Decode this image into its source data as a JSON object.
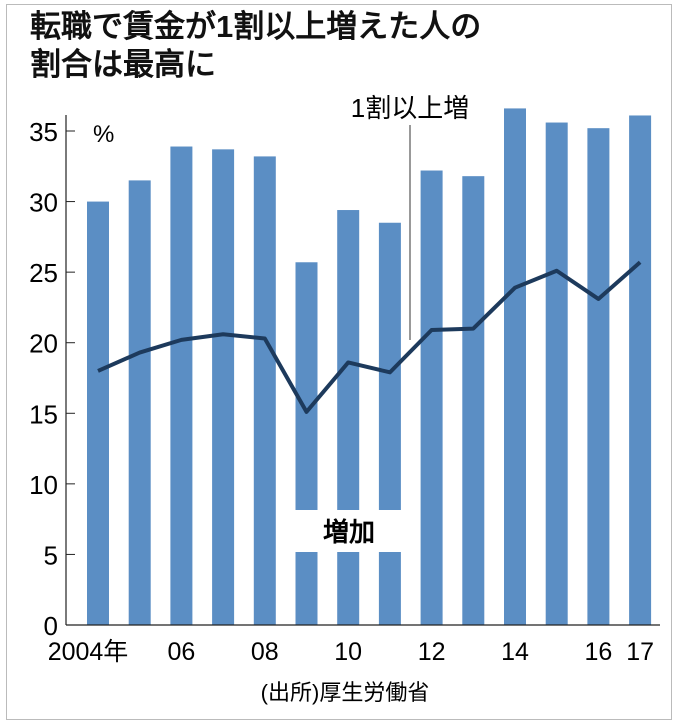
{
  "title_line1": "転職で賃金が1割以上増えた人の",
  "title_line2": "割合は最高に",
  "source": "(出所)厚生労働省",
  "colors": {
    "bar": "#5b8ec4",
    "line": "#1d3a5c"
  },
  "chart_data": {
    "type": "bar+line",
    "title": "転職で賃金が1割以上増えた人の割合は最高に",
    "ylabel": "%",
    "ylim": [
      0,
      35
    ],
    "yticks": [
      "0",
      "5",
      "10",
      "15",
      "20",
      "25",
      "30",
      "35"
    ],
    "x": [
      2004,
      2005,
      2006,
      2007,
      2008,
      2009,
      2010,
      2011,
      2012,
      2013,
      2014,
      2015,
      2016,
      2017
    ],
    "xtick_labels": {
      "0": "2004年",
      "2": "06",
      "4": "08",
      "6": "10",
      "8": "12",
      "10": "14",
      "12": "16",
      "13": "17"
    },
    "series": [
      {
        "name": "増加",
        "type": "bar",
        "values": [
          30.0,
          31.5,
          33.9,
          33.7,
          33.2,
          25.7,
          29.4,
          28.5,
          32.2,
          31.8,
          36.6,
          35.6,
          35.2,
          36.1
        ]
      },
      {
        "name": "1割以上増",
        "type": "line",
        "values": [
          18.0,
          19.3,
          20.2,
          20.6,
          20.3,
          15.1,
          18.6,
          17.9,
          20.9,
          21.0,
          23.9,
          25.1,
          23.1,
          25.7
        ]
      }
    ]
  }
}
